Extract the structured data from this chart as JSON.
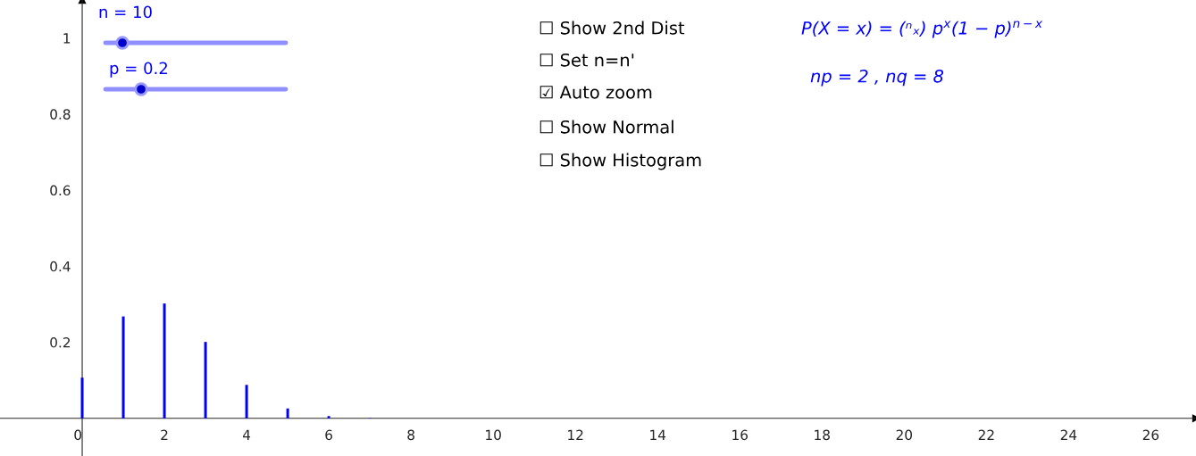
{
  "chart_data": {
    "type": "bar",
    "x": [
      0,
      1,
      2,
      3,
      4,
      5,
      6,
      7,
      8,
      9,
      10
    ],
    "values": [
      0.107,
      0.268,
      0.302,
      0.201,
      0.088,
      0.026,
      0.006,
      0.001,
      0,
      0,
      0
    ],
    "color": "#0000ff",
    "xlim": [
      -2,
      27.1
    ],
    "ylim": [
      -0.099,
      1.1
    ],
    "xticks": [
      0,
      2,
      4,
      6,
      8,
      10,
      12,
      14,
      16,
      18,
      20,
      22,
      24,
      26
    ],
    "yticks": [
      0.2,
      0.4,
      0.6,
      0.8,
      1
    ],
    "grid": false,
    "annotations": [
      "n = 10",
      "p = 0.2",
      "☐ Show 2nd Dist",
      "☐ Set n=n'",
      "☑ Auto zoom",
      "☐ Show Normal",
      "☐ Show Histogram",
      "P(X = x) = (ⁿₓ) p$^{x}$(1 − p)$^{n−x}$",
      "np = 2 , nq = 8"
    ]
  }
}
